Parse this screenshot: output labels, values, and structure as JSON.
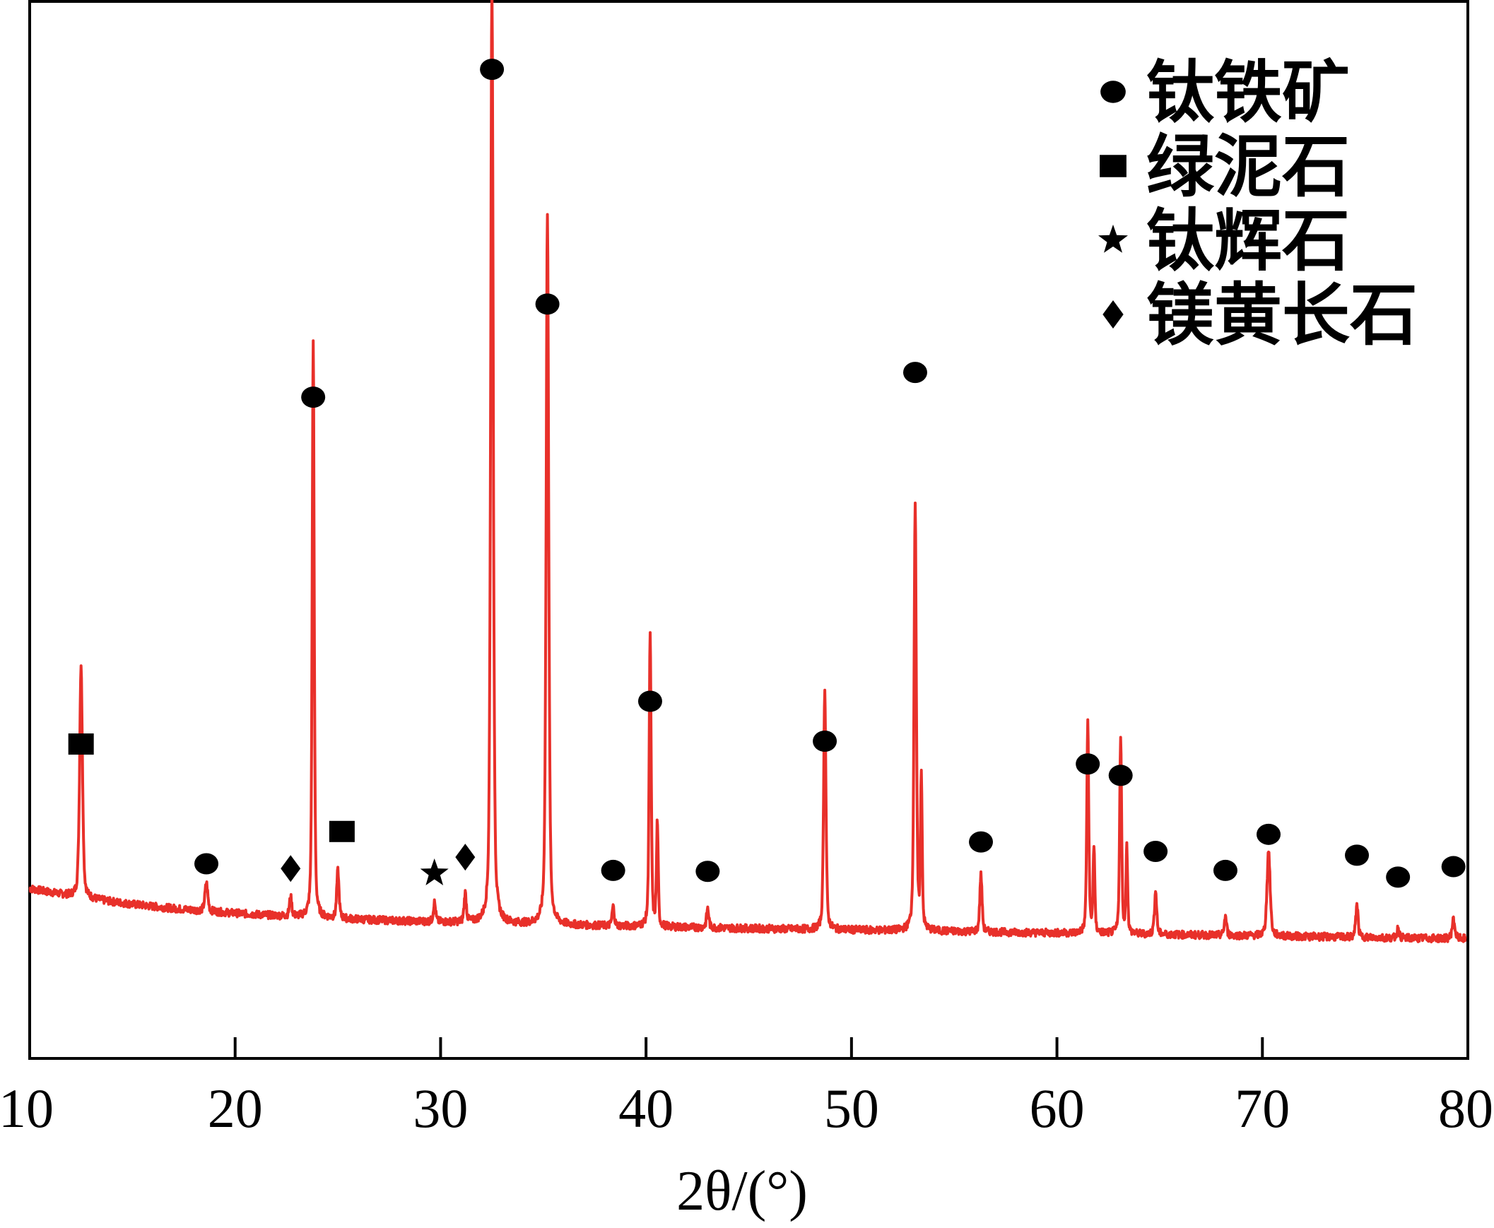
{
  "chart_data": {
    "type": "line",
    "xlabel": "2θ/(°)",
    "ylabel": "",
    "xlim": [
      10,
      80
    ],
    "ylim": [
      0,
      1
    ],
    "grid": false,
    "legend_position": "top-right",
    "x_ticks": [
      10,
      20,
      30,
      40,
      50,
      60,
      70,
      80
    ],
    "tick_labels": [
      "10",
      "20",
      "30",
      "40",
      "50",
      "60",
      "70",
      "80"
    ],
    "line_color": "#e8302a",
    "background": {
      "start": 0.158,
      "end": 0.105
    },
    "peaks": [
      {
        "x": 12.5,
        "y": 0.245,
        "w": 0.1
      },
      {
        "x": 18.6,
        "y": 0.03,
        "w": 0.1
      },
      {
        "x": 22.7,
        "y": 0.02,
        "w": 0.08
      },
      {
        "x": 23.8,
        "y": 0.61,
        "w": 0.07
      },
      {
        "x": 25.0,
        "y": 0.05,
        "w": 0.08
      },
      {
        "x": 29.7,
        "y": 0.02,
        "w": 0.08
      },
      {
        "x": 31.2,
        "y": 0.03,
        "w": 0.08
      },
      {
        "x": 32.5,
        "y": 0.99,
        "w": 0.09
      },
      {
        "x": 35.2,
        "y": 0.75,
        "w": 0.09
      },
      {
        "x": 38.4,
        "y": 0.02,
        "w": 0.08
      },
      {
        "x": 40.2,
        "y": 0.31,
        "w": 0.07
      },
      {
        "x": 40.55,
        "y": 0.11,
        "w": 0.06
      },
      {
        "x": 43.0,
        "y": 0.02,
        "w": 0.08
      },
      {
        "x": 48.7,
        "y": 0.255,
        "w": 0.08
      },
      {
        "x": 53.1,
        "y": 0.45,
        "w": 0.08
      },
      {
        "x": 53.4,
        "y": 0.16,
        "w": 0.06
      },
      {
        "x": 56.3,
        "y": 0.06,
        "w": 0.08
      },
      {
        "x": 61.5,
        "y": 0.22,
        "w": 0.07
      },
      {
        "x": 61.8,
        "y": 0.09,
        "w": 0.06
      },
      {
        "x": 63.1,
        "y": 0.205,
        "w": 0.07
      },
      {
        "x": 63.4,
        "y": 0.09,
        "w": 0.06
      },
      {
        "x": 64.8,
        "y": 0.045,
        "w": 0.08
      },
      {
        "x": 68.2,
        "y": 0.02,
        "w": 0.08
      },
      {
        "x": 70.3,
        "y": 0.09,
        "w": 0.11
      },
      {
        "x": 74.6,
        "y": 0.035,
        "w": 0.08
      },
      {
        "x": 76.6,
        "y": 0.01,
        "w": 0.08
      },
      {
        "x": 79.3,
        "y": 0.02,
        "w": 0.1
      }
    ],
    "markers": [
      {
        "x": 12.5,
        "y": 0.31,
        "symbol": "square"
      },
      {
        "x": 18.6,
        "y": 0.184,
        "symbol": "circle"
      },
      {
        "x": 22.7,
        "y": 0.179,
        "symbol": "diamond"
      },
      {
        "x": 23.8,
        "y": 0.675,
        "symbol": "circle"
      },
      {
        "x": 25.2,
        "y": 0.218,
        "symbol": "square"
      },
      {
        "x": 29.7,
        "y": 0.174,
        "symbol": "star"
      },
      {
        "x": 31.2,
        "y": 0.191,
        "symbol": "diamond"
      },
      {
        "x": 32.5,
        "y": 1.02,
        "symbol": "circle"
      },
      {
        "x": 35.2,
        "y": 0.773,
        "symbol": "circle"
      },
      {
        "x": 38.4,
        "y": 0.177,
        "symbol": "circle"
      },
      {
        "x": 40.2,
        "y": 0.355,
        "symbol": "circle"
      },
      {
        "x": 43.0,
        "y": 0.176,
        "symbol": "circle"
      },
      {
        "x": 48.7,
        "y": 0.313,
        "symbol": "circle"
      },
      {
        "x": 53.1,
        "y": 0.701,
        "symbol": "circle"
      },
      {
        "x": 56.3,
        "y": 0.207,
        "symbol": "circle"
      },
      {
        "x": 61.5,
        "y": 0.289,
        "symbol": "circle"
      },
      {
        "x": 63.1,
        "y": 0.277,
        "symbol": "circle"
      },
      {
        "x": 64.8,
        "y": 0.197,
        "symbol": "circle"
      },
      {
        "x": 68.2,
        "y": 0.177,
        "symbol": "circle"
      },
      {
        "x": 70.3,
        "y": 0.215,
        "symbol": "circle"
      },
      {
        "x": 74.6,
        "y": 0.193,
        "symbol": "circle"
      },
      {
        "x": 76.6,
        "y": 0.17,
        "symbol": "circle"
      },
      {
        "x": 79.3,
        "y": 0.181,
        "symbol": "circle"
      }
    ],
    "legend": [
      {
        "symbol": "circle",
        "label": "钛铁矿"
      },
      {
        "symbol": "square",
        "label": "绿泥石"
      },
      {
        "symbol": "star",
        "label": "钛辉石"
      },
      {
        "symbol": "diamond",
        "label": "镁黄长石"
      }
    ]
  }
}
